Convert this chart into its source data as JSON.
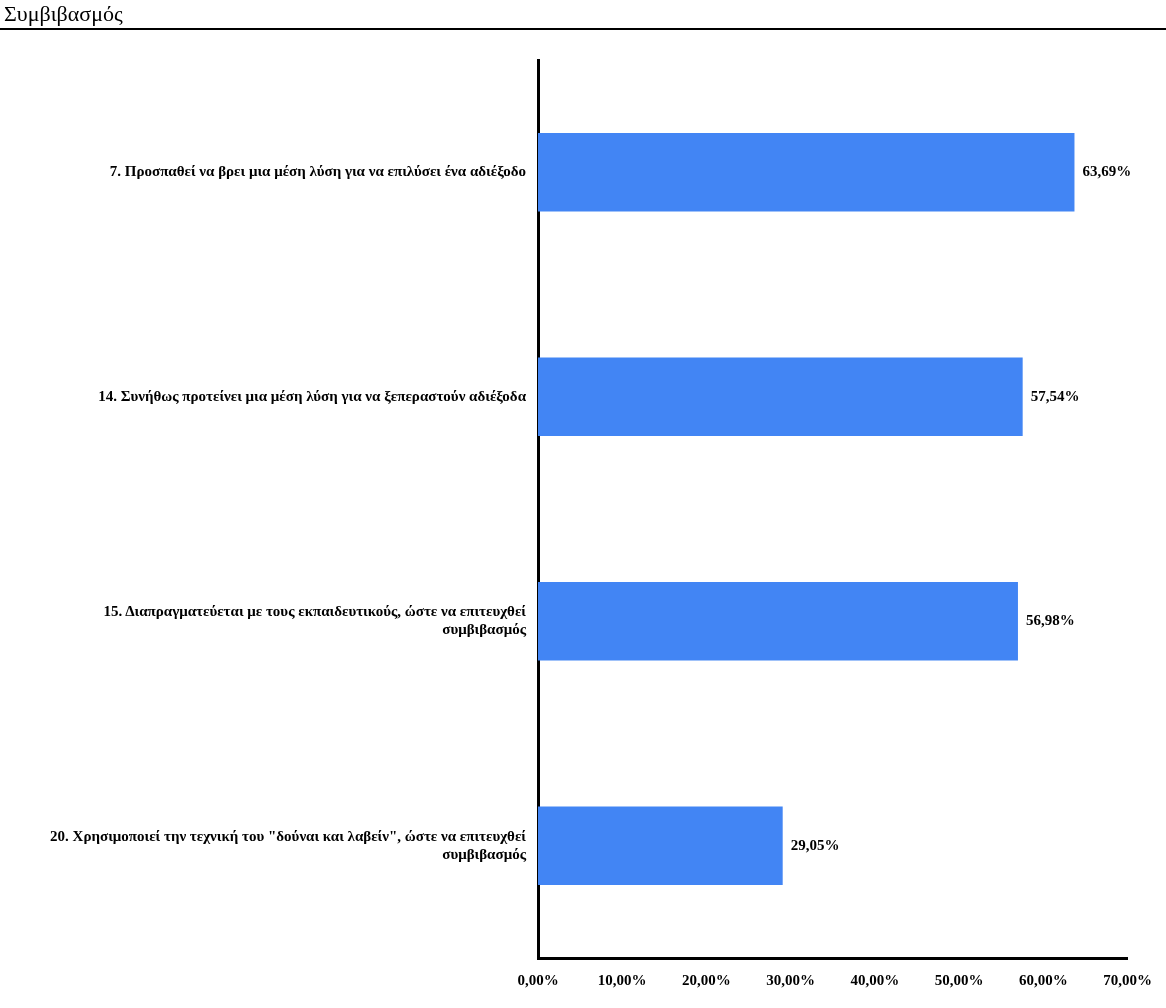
{
  "chart_data": {
    "type": "bar",
    "orientation": "horizontal",
    "title": "Συμβιβασμός",
    "categories": [
      "7. Προσπαθεί να βρει μια μέση λύση για να επιλύσει ένα αδιέξοδο",
      "14. Συνήθως προτείνει μια μέση λύση για να ξεπεραστούν αδιέξοδα",
      "15. Διαπραγματεύεται με τους εκπαιδευτικούς, ώστε να επιτευχθεί συμβιβασμός",
      "20. Χρησιμοποιεί την τεχνική του \"δούναι και λαβείν\", ώστε να επιτευχθεί συμβιβασμός"
    ],
    "values": [
      63.69,
      57.54,
      56.98,
      29.05
    ],
    "value_labels": [
      "63,69%",
      "57,54%",
      "56,98%",
      "29,05%"
    ],
    "color": "#4285f4",
    "xlim": [
      0,
      70
    ],
    "xticks": [
      {
        "value": 0,
        "label": "0,00%"
      },
      {
        "value": 10,
        "label": "10,00%"
      },
      {
        "value": 20,
        "label": "20,00%"
      },
      {
        "value": 30,
        "label": "30,00%"
      },
      {
        "value": 40,
        "label": "40,00%"
      },
      {
        "value": 50,
        "label": "50,00%"
      },
      {
        "value": 60,
        "label": "60,00%"
      },
      {
        "value": 70,
        "label": "70,00%"
      }
    ],
    "grid": false,
    "legend": false
  }
}
